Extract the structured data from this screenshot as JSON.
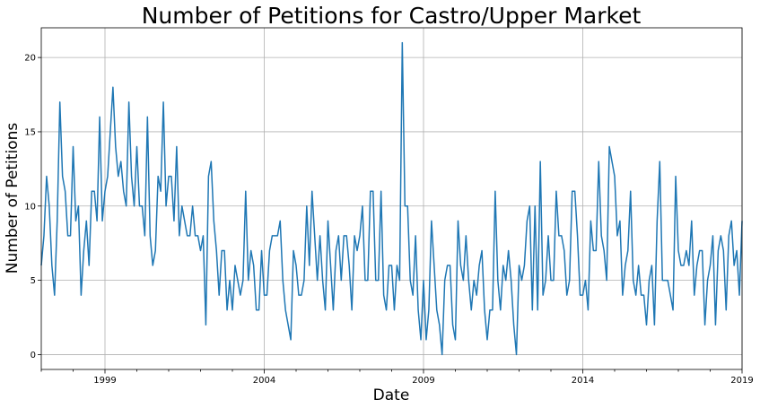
{
  "chart_data": {
    "type": "line",
    "title": "Number of Petitions for Castro/Upper Market",
    "xlabel": "Date",
    "ylabel": "Number of Petitions",
    "xlim": [
      "1997-01",
      "2019-01"
    ],
    "ylim": [
      -1,
      22
    ],
    "grid": true,
    "xticks": [
      {
        "date": "1999-01",
        "label": "1999"
      },
      {
        "date": "2004-01",
        "label": "2004"
      },
      {
        "date": "2009-01",
        "label": "2009"
      },
      {
        "date": "2014-01",
        "label": "2014"
      },
      {
        "date": "2019-01",
        "label": "2019"
      }
    ],
    "yticks": [
      {
        "value": 0,
        "label": "0"
      },
      {
        "value": 5,
        "label": "5"
      },
      {
        "value": 10,
        "label": "10"
      },
      {
        "value": 15,
        "label": "15"
      },
      {
        "value": 20,
        "label": "20"
      }
    ],
    "series": [
      {
        "color": "#1f77b4",
        "x_start": "1997-01",
        "x_step": "1 month",
        "values": [
          6,
          8,
          12,
          10,
          6,
          4,
          9,
          17,
          12,
          11,
          8,
          8,
          14,
          9,
          10,
          4,
          7,
          9,
          6,
          11,
          11,
          9,
          16,
          9,
          11,
          12,
          15,
          18,
          14,
          12,
          13,
          11,
          10,
          17,
          12,
          10,
          14,
          10,
          10,
          8,
          16,
          8,
          6,
          7,
          12,
          11,
          17,
          10,
          12,
          12,
          9,
          14,
          8,
          10,
          9,
          8,
          8,
          10,
          8,
          8,
          7,
          8,
          2,
          12,
          13,
          9,
          7,
          4,
          7,
          7,
          3,
          5,
          3,
          6,
          5,
          4,
          5,
          11,
          5,
          7,
          6,
          3,
          3,
          7,
          4,
          4,
          7,
          8,
          8,
          8,
          9,
          5,
          3,
          2,
          1,
          7,
          6,
          4,
          4,
          5,
          10,
          6,
          11,
          8,
          5,
          8,
          5,
          3,
          9,
          6,
          3,
          7,
          8,
          5,
          8,
          8,
          6,
          3,
          8,
          7,
          8,
          10,
          5,
          5,
          11,
          11,
          5,
          5,
          11,
          4,
          3,
          6,
          6,
          3,
          6,
          5,
          21,
          10,
          10,
          5,
          4,
          8,
          3,
          1,
          5,
          1,
          3,
          9,
          6,
          3,
          2,
          0,
          5,
          6,
          6,
          2,
          1,
          9,
          6,
          5,
          8,
          5,
          3,
          5,
          4,
          6,
          7,
          3,
          1,
          3,
          3,
          11,
          5,
          3,
          6,
          5,
          7,
          5,
          2,
          0,
          6,
          5,
          6,
          9,
          10,
          3,
          10,
          3,
          13,
          4,
          5,
          8,
          5,
          5,
          11,
          8,
          8,
          7,
          4,
          5,
          11,
          11,
          8,
          4,
          4,
          5,
          3,
          9,
          7,
          7,
          13,
          8,
          7,
          5,
          14,
          13,
          12,
          8,
          9,
          4,
          6,
          7,
          11,
          5,
          4,
          6,
          4,
          4,
          2,
          5,
          6,
          2,
          9,
          13,
          5,
          5,
          5,
          4,
          3,
          12,
          7,
          6,
          6,
          7,
          6,
          9,
          4,
          6,
          7,
          7,
          2,
          5,
          6,
          8,
          2,
          7,
          8,
          7,
          3,
          8,
          9,
          6,
          7,
          4,
          9
        ]
      }
    ]
  }
}
